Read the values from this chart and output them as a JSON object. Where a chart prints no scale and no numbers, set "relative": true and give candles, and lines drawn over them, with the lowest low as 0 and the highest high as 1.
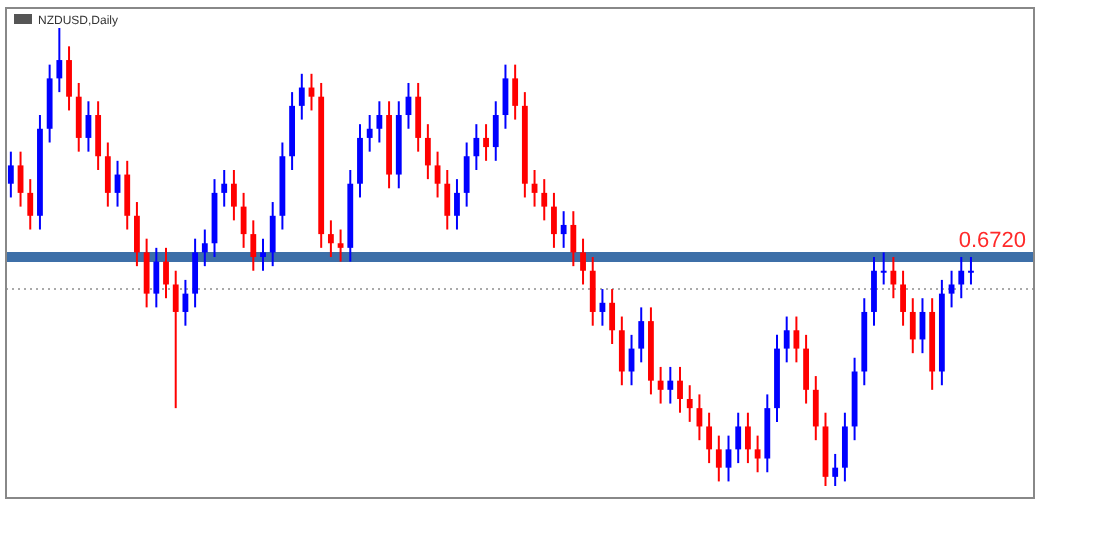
{
  "chart_data": {
    "type": "candlestick",
    "title": "NZDUSD,Daily",
    "relative": true,
    "annotations": [
      "0.6720"
    ],
    "categories": [
      null,
      null,
      null,
      null,
      null,
      null,
      null,
      null,
      null,
      null,
      null,
      null,
      null,
      null,
      null,
      null,
      null,
      null,
      null,
      null,
      null,
      null,
      null,
      null,
      null,
      null,
      null,
      null,
      null,
      null,
      null,
      null,
      null,
      null,
      null,
      null,
      null,
      null,
      null,
      null,
      null,
      null,
      null,
      null,
      null,
      null,
      null,
      null,
      null,
      null,
      null,
      null,
      null,
      null,
      null,
      null,
      null,
      null,
      null,
      null,
      null,
      null,
      null,
      null,
      null,
      null,
      null,
      null,
      null,
      null,
      null,
      null,
      null,
      null,
      null,
      null,
      null,
      null,
      null,
      null,
      null,
      null,
      null,
      null,
      null,
      null,
      null,
      null,
      null,
      null,
      null,
      null,
      null,
      null,
      null,
      null,
      null,
      null,
      null,
      null
    ],
    "ohlc": [
      [
        0.66,
        0.73,
        0.63,
        0.7
      ],
      [
        0.7,
        0.73,
        0.61,
        0.64
      ],
      [
        0.64,
        0.67,
        0.56,
        0.59
      ],
      [
        0.59,
        0.81,
        0.56,
        0.78
      ],
      [
        0.78,
        0.92,
        0.75,
        0.89
      ],
      [
        0.89,
        1,
        0.86,
        0.93
      ],
      [
        0.93,
        0.96,
        0.82,
        0.85
      ],
      [
        0.85,
        0.88,
        0.73,
        0.76
      ],
      [
        0.76,
        0.84,
        0.73,
        0.81
      ],
      [
        0.81,
        0.84,
        0.69,
        0.72
      ],
      [
        0.72,
        0.75,
        0.61,
        0.64
      ],
      [
        0.64,
        0.71,
        0.61,
        0.68
      ],
      [
        0.68,
        0.71,
        0.56,
        0.59
      ],
      [
        0.59,
        0.62,
        0.48,
        0.51
      ],
      [
        0.51,
        0.54,
        0.39,
        0.42
      ],
      [
        0.42,
        0.52,
        0.39,
        0.49
      ],
      [
        0.49,
        0.52,
        0.41,
        0.44
      ],
      [
        0.44,
        0.47,
        0.17,
        0.38
      ],
      [
        0.38,
        0.45,
        0.35,
        0.42
      ],
      [
        0.42,
        0.54,
        0.39,
        0.51
      ],
      [
        0.51,
        0.56,
        0.48,
        0.53
      ],
      [
        0.53,
        0.67,
        0.5,
        0.64
      ],
      [
        0.64,
        0.69,
        0.61,
        0.66
      ],
      [
        0.66,
        0.69,
        0.58,
        0.61
      ],
      [
        0.61,
        0.64,
        0.52,
        0.55
      ],
      [
        0.55,
        0.58,
        0.47,
        0.5
      ],
      [
        0.5,
        0.54,
        0.47,
        0.51
      ],
      [
        0.51,
        0.62,
        0.48,
        0.59
      ],
      [
        0.59,
        0.75,
        0.56,
        0.72
      ],
      [
        0.72,
        0.86,
        0.69,
        0.83
      ],
      [
        0.83,
        0.9,
        0.8,
        0.87
      ],
      [
        0.87,
        0.9,
        0.82,
        0.85
      ],
      [
        0.85,
        0.88,
        0.52,
        0.55
      ],
      [
        0.55,
        0.58,
        0.5,
        0.53
      ],
      [
        0.53,
        0.56,
        0.49,
        0.52
      ],
      [
        0.52,
        0.69,
        0.49,
        0.66
      ],
      [
        0.66,
        0.79,
        0.63,
        0.76
      ],
      [
        0.76,
        0.81,
        0.73,
        0.78
      ],
      [
        0.78,
        0.84,
        0.75,
        0.81
      ],
      [
        0.81,
        0.84,
        0.65,
        0.68
      ],
      [
        0.68,
        0.84,
        0.65,
        0.81
      ],
      [
        0.81,
        0.88,
        0.78,
        0.85
      ],
      [
        0.85,
        0.88,
        0.73,
        0.76
      ],
      [
        0.76,
        0.79,
        0.67,
        0.7
      ],
      [
        0.7,
        0.73,
        0.63,
        0.66
      ],
      [
        0.66,
        0.69,
        0.56,
        0.59
      ],
      [
        0.59,
        0.67,
        0.56,
        0.64
      ],
      [
        0.64,
        0.75,
        0.61,
        0.72
      ],
      [
        0.72,
        0.79,
        0.69,
        0.76
      ],
      [
        0.76,
        0.79,
        0.71,
        0.74
      ],
      [
        0.74,
        0.84,
        0.71,
        0.81
      ],
      [
        0.81,
        0.92,
        0.78,
        0.89
      ],
      [
        0.89,
        0.92,
        0.8,
        0.83
      ],
      [
        0.83,
        0.86,
        0.63,
        0.66
      ],
      [
        0.66,
        0.69,
        0.61,
        0.64
      ],
      [
        0.64,
        0.67,
        0.58,
        0.61
      ],
      [
        0.61,
        0.64,
        0.52,
        0.55
      ],
      [
        0.55,
        0.6,
        0.52,
        0.57
      ],
      [
        0.57,
        0.6,
        0.48,
        0.51
      ],
      [
        0.51,
        0.54,
        0.44,
        0.47
      ],
      [
        0.47,
        0.5,
        0.35,
        0.38
      ],
      [
        0.38,
        0.43,
        0.35,
        0.4
      ],
      [
        0.4,
        0.43,
        0.31,
        0.34
      ],
      [
        0.34,
        0.37,
        0.22,
        0.25
      ],
      [
        0.25,
        0.33,
        0.22,
        0.3
      ],
      [
        0.3,
        0.39,
        0.27,
        0.36
      ],
      [
        0.36,
        0.39,
        0.2,
        0.23
      ],
      [
        0.23,
        0.26,
        0.18,
        0.21
      ],
      [
        0.21,
        0.26,
        0.18,
        0.23
      ],
      [
        0.23,
        0.26,
        0.16,
        0.19
      ],
      [
        0.19,
        0.22,
        0.14,
        0.17
      ],
      [
        0.17,
        0.2,
        0.1,
        0.13
      ],
      [
        0.13,
        0.16,
        0.05,
        0.08
      ],
      [
        0.08,
        0.11,
        0.01,
        0.04
      ],
      [
        0.04,
        0.11,
        0.01,
        0.08
      ],
      [
        0.08,
        0.16,
        0.05,
        0.13
      ],
      [
        0.13,
        0.16,
        0.05,
        0.08
      ],
      [
        0.08,
        0.11,
        0.03,
        0.06
      ],
      [
        0.06,
        0.2,
        0.03,
        0.17
      ],
      [
        0.17,
        0.33,
        0.14,
        0.3
      ],
      [
        0.3,
        0.37,
        0.27,
        0.34
      ],
      [
        0.34,
        0.37,
        0.27,
        0.3
      ],
      [
        0.3,
        0.33,
        0.18,
        0.21
      ],
      [
        0.21,
        0.24,
        0.1,
        0.13
      ],
      [
        0.13,
        0.16,
        0,
        0.02
      ],
      [
        0.02,
        0.07,
        0,
        0.04
      ],
      [
        0.04,
        0.16,
        0.01,
        0.13
      ],
      [
        0.13,
        0.28,
        0.1,
        0.25
      ],
      [
        0.25,
        0.41,
        0.22,
        0.38
      ],
      [
        0.38,
        0.5,
        0.35,
        0.47
      ],
      [
        0.47,
        0.51,
        0.44,
        0.47
      ],
      [
        0.47,
        0.5,
        0.41,
        0.44
      ],
      [
        0.44,
        0.47,
        0.35,
        0.38
      ],
      [
        0.38,
        0.41,
        0.29,
        0.32
      ],
      [
        0.32,
        0.41,
        0.29,
        0.38
      ],
      [
        0.38,
        0.41,
        0.21,
        0.25
      ],
      [
        0.25,
        0.45,
        0.22,
        0.42
      ],
      [
        0.42,
        0.47,
        0.39,
        0.44
      ],
      [
        0.44,
        0.5,
        0.41,
        0.47
      ],
      [
        0.47,
        0.5,
        0.44,
        0.47
      ]
    ],
    "ref_lines": [
      {
        "axis": "y",
        "value": 0.5,
        "color": "#3d6fa8",
        "line_style": "solid"
      },
      {
        "axis": "y",
        "value": 0.43,
        "color": "#aaaaaa",
        "line_style": "dotted"
      }
    ]
  }
}
